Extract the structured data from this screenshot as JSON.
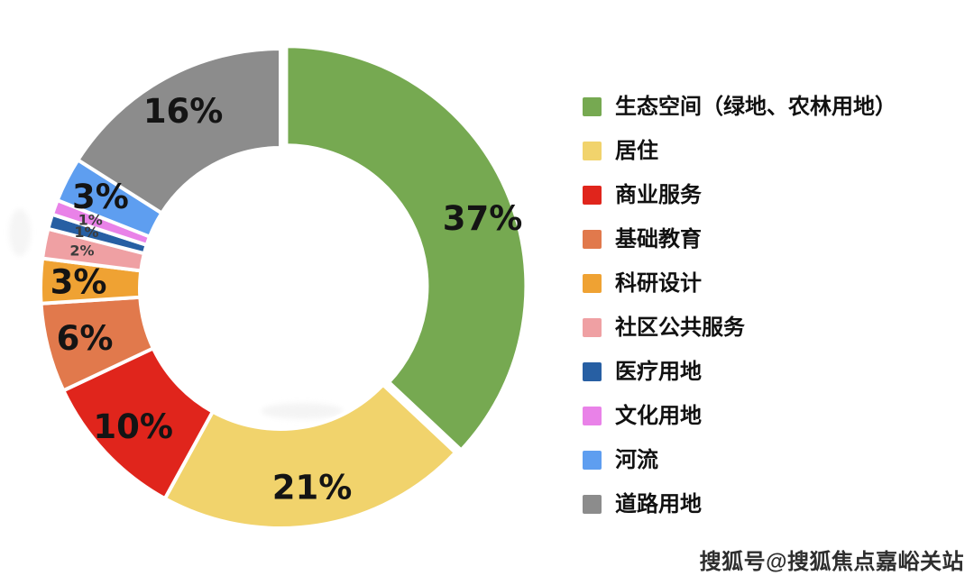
{
  "chart_data": {
    "type": "pie",
    "subtype": "donut",
    "title": "",
    "unit": "%",
    "total": 100,
    "legend_position": "right",
    "start_angle_deg": 0,
    "direction": "clockwise",
    "slices": [
      {
        "label": "生态空间（绿地、农林用地）",
        "value": 37,
        "pct_label": "37%",
        "color": "#76A951"
      },
      {
        "label": "居住",
        "value": 21,
        "pct_label": "21%",
        "color": "#F1D36C"
      },
      {
        "label": "商业服务",
        "value": 10,
        "pct_label": "10%",
        "color": "#E0251C"
      },
      {
        "label": "基础教育",
        "value": 6,
        "pct_label": "6%",
        "color": "#E1794C"
      },
      {
        "label": "科研设计",
        "value": 3,
        "pct_label": "3%",
        "color": "#EFA233"
      },
      {
        "label": "社区公共服务",
        "value": 2,
        "pct_label": "2%",
        "color": "#EFA0A3"
      },
      {
        "label": "医疗用地",
        "value": 1,
        "pct_label": "1%",
        "color": "#275FA3"
      },
      {
        "label": "文化用地",
        "value": 1,
        "pct_label": "1%",
        "color": "#E982E8"
      },
      {
        "label": "河流",
        "value": 3,
        "pct_label": "3%",
        "color": "#5E9EF0"
      },
      {
        "label": "道路用地",
        "value": 16,
        "pct_label": "16%",
        "color": "#8C8C8C"
      }
    ]
  },
  "watermark": {
    "text": "搜狐号@搜狐焦点嘉峪关站"
  }
}
